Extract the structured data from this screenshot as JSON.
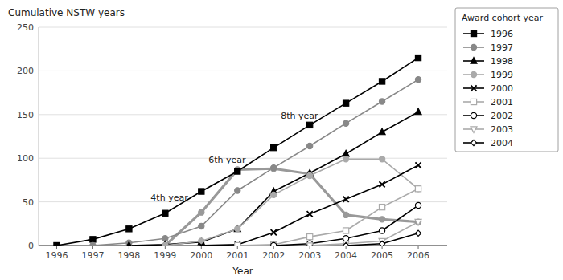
{
  "chart_data": {
    "type": "line",
    "y_label": "Cumulative NSTW years",
    "x_label": "Year",
    "legend_title": "Award cohort year",
    "legend": "right",
    "grid": "y",
    "xlim": [
      1995.5,
      2006.8
    ],
    "xticks": [
      1996,
      1997,
      1998,
      1999,
      2000,
      2001,
      2002,
      2003,
      2004,
      2005,
      2006
    ],
    "ylim": [
      0,
      250
    ],
    "yticks": [
      0,
      50,
      100,
      150,
      200,
      250
    ],
    "series": [
      {
        "color": "#999999",
        "marker": "circle",
        "x": [
          1999,
          2000,
          2001,
          2002,
          2003,
          2004,
          2005,
          2006
        ],
        "values": [
          0,
          38,
          87,
          88,
          82,
          35,
          30,
          27
        ]
      },
      {
        "name": "1996",
        "color": "#000000",
        "marker": "square",
        "x": [
          1996,
          1997,
          1998,
          1999,
          2000,
          2001,
          2002,
          2003,
          2004,
          2005,
          2006
        ],
        "values": [
          0,
          7,
          19,
          37,
          62,
          85,
          112,
          138,
          163,
          188,
          215
        ]
      },
      {
        "name": "1997",
        "color": "#888888",
        "marker": "circle",
        "x": [
          1997,
          1998,
          1999,
          2000,
          2001,
          2002,
          2003,
          2004,
          2005,
          2006
        ],
        "values": [
          0,
          3,
          8,
          22,
          63,
          89,
          114,
          140,
          165,
          190
        ]
      },
      {
        "name": "1998",
        "color": "#000000",
        "marker": "triangle-up",
        "x": [
          1998,
          1999,
          2000,
          2001,
          2002,
          2003,
          2004,
          2005,
          2006
        ],
        "values": [
          0,
          1,
          4,
          19,
          62,
          83,
          105,
          130,
          153
        ]
      },
      {
        "name": "1999",
        "color": "#aaaaaa",
        "marker": "circle",
        "x": [
          1999,
          2000,
          2001,
          2002,
          2003,
          2004,
          2005,
          2006
        ],
        "values": [
          0,
          5,
          19,
          58,
          80,
          99,
          99,
          65
        ]
      },
      {
        "name": "2000",
        "color": "#000000",
        "marker": "x",
        "x": [
          2000,
          2001,
          2002,
          2003,
          2004,
          2005,
          2006
        ],
        "values": [
          0,
          1,
          15,
          36,
          53,
          70,
          92
        ]
      },
      {
        "name": "2001",
        "color": "#aaaaaa",
        "marker": "open-square",
        "x": [
          2001,
          2002,
          2003,
          2004,
          2005,
          2006
        ],
        "values": [
          0,
          1,
          10,
          17,
          44,
          65
        ]
      },
      {
        "name": "2002",
        "color": "#000000",
        "marker": "open-circle",
        "x": [
          2002,
          2003,
          2004,
          2005,
          2006
        ],
        "values": [
          0,
          2,
          8,
          17,
          46
        ]
      },
      {
        "name": "2003",
        "color": "#aaaaaa",
        "marker": "open-triangle-down",
        "x": [
          2003,
          2004,
          2005,
          2006
        ],
        "values": [
          0,
          2,
          5,
          27
        ]
      },
      {
        "name": "2004",
        "color": "#000000",
        "marker": "open-diamond",
        "x": [
          2004,
          2005,
          2006
        ],
        "values": [
          0,
          2,
          14
        ]
      }
    ],
    "annotations": [
      {
        "text": "4th year",
        "x": 1998.6,
        "y": 50
      },
      {
        "text": "6th year",
        "x": 2000.2,
        "y": 93
      },
      {
        "text": "8th year",
        "x": 2002.2,
        "y": 143
      }
    ]
  }
}
